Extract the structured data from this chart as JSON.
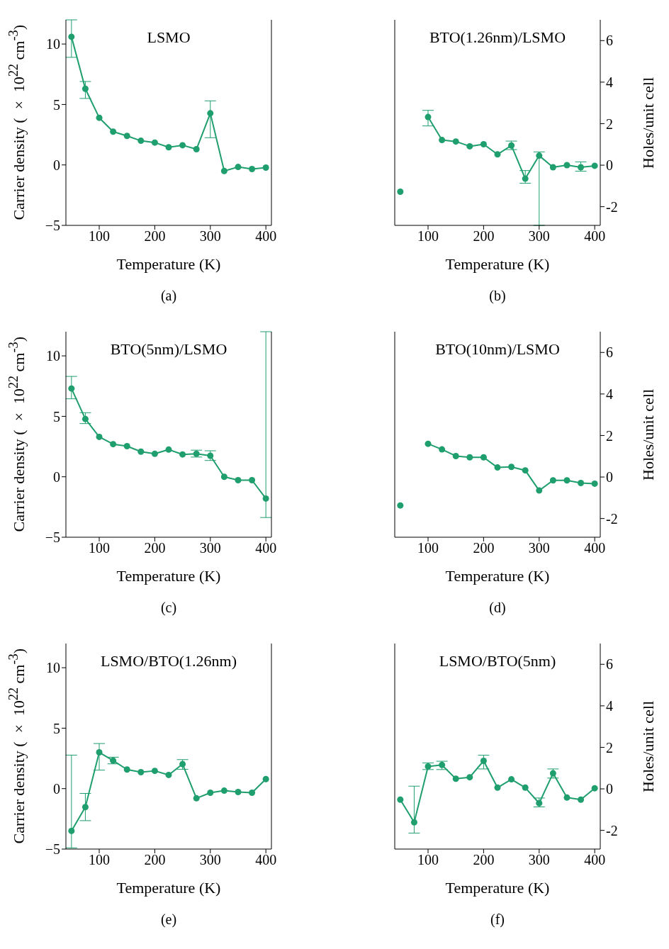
{
  "chart_data": [
    {
      "type": "line",
      "title": "LSMO",
      "xlabel": "Temperature (K)",
      "ylabel": "Carrier density ( × 10$^{22}$ cm$^{-3}$)",
      "annotations": [
        "(a)"
      ],
      "x": [
        50,
        75,
        100,
        125,
        150,
        175,
        200,
        225,
        250,
        275,
        300,
        325,
        350,
        375,
        400
      ],
      "xlim": [
        40,
        410
      ],
      "xticks": [
        100,
        200,
        300,
        400
      ],
      "ylim": [
        -5,
        12
      ],
      "yticks": [
        -5,
        0,
        5,
        10
      ],
      "marker": "circle",
      "series": [
        {
          "color": "#1f9e6e",
          "values": [
            10.6,
            6.3,
            3.9,
            2.75,
            2.4,
            2.0,
            1.85,
            1.46,
            1.63,
            1.3,
            4.27,
            -0.5,
            -0.17,
            -0.34,
            -0.22
          ],
          "errors": [
            [
              8.9,
              12
            ],
            [
              5.5,
              6.9
            ],
            null,
            null,
            null,
            null,
            null,
            null,
            null,
            null,
            [
              2.25,
              5.3
            ],
            null,
            null,
            null,
            null
          ]
        }
      ]
    },
    {
      "type": "line",
      "title": "BTO(1.26nm)/LSMO",
      "xlabel": "Temperature (K)",
      "y2label": "Holes/unit cell",
      "annotations": [
        "(b)"
      ],
      "x": [
        50,
        75,
        100,
        125,
        150,
        175,
        200,
        225,
        250,
        275,
        300,
        325,
        350,
        375,
        400
      ],
      "xlim": [
        40,
        410
      ],
      "xticks": [
        100,
        200,
        300,
        400
      ],
      "y2lim": [
        -2.9,
        7
      ],
      "y2ticks": [
        -2,
        0,
        2,
        4,
        6
      ],
      "marker": "circle",
      "series": [
        {
          "axis": "y2",
          "color": "#1f9e6e",
          "values": [
            -1.28,
            null,
            2.32,
            1.21,
            1.14,
            0.91,
            1.01,
            0.52,
            0.95,
            -0.65,
            0.46,
            -0.1,
            0,
            -0.1,
            -0.03
          ],
          "errors": [
            null,
            null,
            [
              1.89,
              2.64
            ],
            null,
            null,
            null,
            null,
            null,
            [
              0.75,
              1.16
            ],
            [
              -0.87,
              -0.26
            ],
            [
              -2.9,
              0.64
            ],
            null,
            null,
            [
              -0.29,
              0.16
            ],
            null
          ]
        }
      ]
    },
    {
      "type": "line",
      "title": "BTO(5nm)/LSMO",
      "xlabel": "Temperature (K)",
      "ylabel": "Carrier density ( × 10$^{22}$ cm$^{-3}$)",
      "annotations": [
        "(c)"
      ],
      "x": [
        50,
        75,
        100,
        125,
        150,
        175,
        200,
        225,
        250,
        275,
        300,
        325,
        350,
        375,
        400
      ],
      "xlim": [
        40,
        410
      ],
      "xticks": [
        100,
        200,
        300,
        400
      ],
      "ylim": [
        -5,
        12
      ],
      "yticks": [
        -5,
        0,
        5,
        10
      ],
      "marker": "circle",
      "series": [
        {
          "color": "#1f9e6e",
          "values": [
            7.3,
            4.78,
            3.3,
            2.7,
            2.53,
            2.08,
            1.9,
            2.25,
            1.85,
            1.9,
            1.74,
            0,
            -0.28,
            -0.28,
            -1.8
          ],
          "errors": [
            [
              6.45,
              8.3
            ],
            [
              4.4,
              5.3
            ],
            null,
            null,
            null,
            null,
            null,
            null,
            null,
            [
              1.63,
              2.2
            ],
            [
              1.35,
              2.15
            ],
            null,
            null,
            null,
            [
              -3.37,
              12
            ]
          ]
        }
      ]
    },
    {
      "type": "line",
      "title": "BTO(10nm)/LSMO",
      "xlabel": "Temperature (K)",
      "y2label": "Holes/unit cell",
      "annotations": [
        "(d)"
      ],
      "x": [
        50,
        75,
        100,
        125,
        150,
        175,
        200,
        225,
        250,
        275,
        300,
        325,
        350,
        375,
        400
      ],
      "xlim": [
        40,
        410
      ],
      "xticks": [
        100,
        200,
        300,
        400
      ],
      "y2lim": [
        -2.9,
        7
      ],
      "y2ticks": [
        -2,
        0,
        2,
        4,
        6
      ],
      "marker": "circle",
      "series": [
        {
          "axis": "y2",
          "color": "#1f9e6e",
          "values": [
            -1.37,
            null,
            1.6,
            1.33,
            1.01,
            0.95,
            0.95,
            0.46,
            0.49,
            0.32,
            -0.65,
            -0.16,
            -0.16,
            -0.29,
            -0.32
          ]
        }
      ]
    },
    {
      "type": "line",
      "title": "LSMO/BTO(1.26nm)",
      "xlabel": "Temperature (K)",
      "ylabel": "Carrier density ( × 10$^{22}$ cm$^{-3}$)",
      "annotations": [
        "(e)"
      ],
      "x": [
        50,
        75,
        100,
        125,
        150,
        175,
        200,
        225,
        250,
        275,
        300,
        325,
        350,
        375,
        400
      ],
      "xlim": [
        40,
        410
      ],
      "xticks": [
        100,
        200,
        300,
        400
      ],
      "ylim": [
        -5,
        12
      ],
      "yticks": [
        -5,
        0,
        5,
        10
      ],
      "marker": "circle",
      "series": [
        {
          "color": "#1f9e6e",
          "values": [
            -3.5,
            -1.53,
            3.0,
            2.32,
            1.58,
            1.36,
            1.47,
            1.13,
            2.03,
            -0.8,
            -0.34,
            -0.17,
            -0.28,
            -0.34,
            0.79
          ],
          "errors": [
            [
              -4.9,
              2.77
            ],
            [
              -2.65,
              -0.4
            ],
            [
              1.53,
              3.73
            ],
            [
              2.05,
              2.6
            ],
            null,
            null,
            null,
            null,
            [
              1.6,
              2.4
            ],
            null,
            null,
            null,
            null,
            null,
            null
          ]
        }
      ]
    },
    {
      "type": "line",
      "title": "LSMO/BTO(5nm)",
      "xlabel": "Temperature (K)",
      "y2label": "Holes/unit cell",
      "annotations": [
        "(f)"
      ],
      "x": [
        50,
        75,
        100,
        125,
        150,
        175,
        200,
        225,
        250,
        275,
        300,
        325,
        350,
        375,
        400
      ],
      "xlim": [
        40,
        410
      ],
      "xticks": [
        100,
        200,
        300,
        400
      ],
      "y2lim": [
        -2.9,
        7
      ],
      "y2ticks": [
        -2,
        0,
        2,
        4,
        6
      ],
      "marker": "circle",
      "series": [
        {
          "axis": "y2",
          "color": "#1f9e6e",
          "values": [
            -0.52,
            -1.61,
            1.08,
            1.15,
            0.49,
            0.56,
            1.35,
            0.06,
            0.46,
            0.06,
            -0.69,
            0.75,
            -0.42,
            -0.52,
            0.03
          ],
          "errors": [
            null,
            [
              -2.13,
              0.13
            ],
            [
              0.93,
              1.25
            ],
            [
              0.93,
              1.33
            ],
            null,
            null,
            [
              0.96,
              1.62
            ],
            null,
            null,
            null,
            [
              -0.87,
              -0.44
            ],
            [
              0.52,
              0.96
            ],
            null,
            null,
            null
          ]
        }
      ]
    }
  ]
}
